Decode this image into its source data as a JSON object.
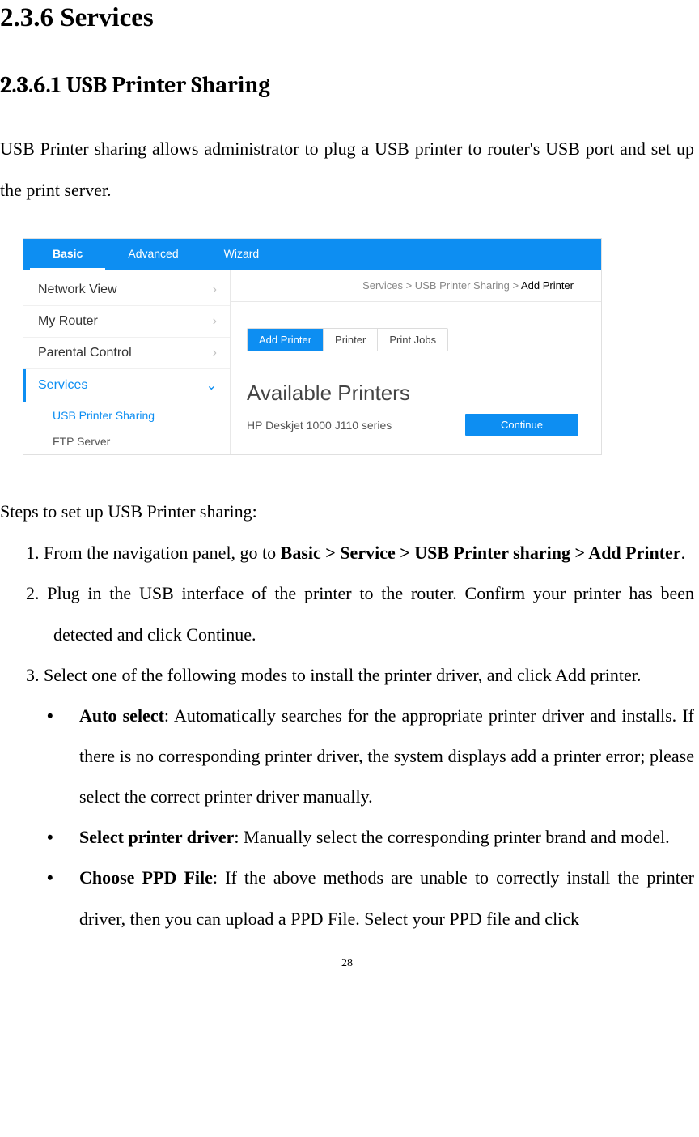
{
  "heading_main": "2.3.6 Services",
  "heading_sub": "2.3.6.1 USB Printer Sharing",
  "intro": "USB Printer sharing allows administrator to plug a USB printer to router's USB port and set up the print server.",
  "figure": {
    "top_tabs": {
      "basic": "Basic",
      "advanced": "Advanced",
      "wizard": "Wizard"
    },
    "breadcrumb_prefix": "Services > USB Printer Sharing > ",
    "breadcrumb_last": "Add Printer",
    "sidebar": {
      "network_view": "Network View",
      "my_router": "My Router",
      "parental_control": "Parental Control",
      "services": "Services",
      "sub_usb": "USB Printer Sharing",
      "sub_ftp": "FTP Server"
    },
    "tabs": {
      "add_printer": "Add Printer",
      "printer": "Printer",
      "print_jobs": "Print Jobs"
    },
    "available_title": "Available Printers",
    "printer_name": "HP Deskjet 1000 J110 series",
    "continue_label": "Continue",
    "colors": {
      "primary": "#0d8ef2",
      "border": "#e0e0e0",
      "text_muted": "#888"
    }
  },
  "steps_intro": "Steps to set up USB Printer sharing:",
  "step1_pre": "1. From the navigation panel, go to ",
  "step1_bold": "Basic > Service > USB Printer sharing > Add Printer",
  "step1_post": ".",
  "step2": "2. Plug in the USB interface of the printer to the router. Confirm your printer has been detected and click Continue.",
  "step3": "3. Select one of the following modes to install the printer driver, and click Add printer.",
  "sub1_bold": "Auto select",
  "sub1_rest": ": Automatically searches for the appropriate printer driver and installs. If there is no corresponding printer driver, the system displays add a printer error; please select the correct printer driver manually.",
  "sub2_bold": "Select printer driver",
  "sub2_rest": ": Manually select the corresponding printer brand and model.",
  "sub3_bold": "Choose PPD File",
  "sub3_rest": ": If the above methods are unable to correctly install the printer driver, then you can upload a PPD File. Select your PPD file and click",
  "page_number": "28"
}
